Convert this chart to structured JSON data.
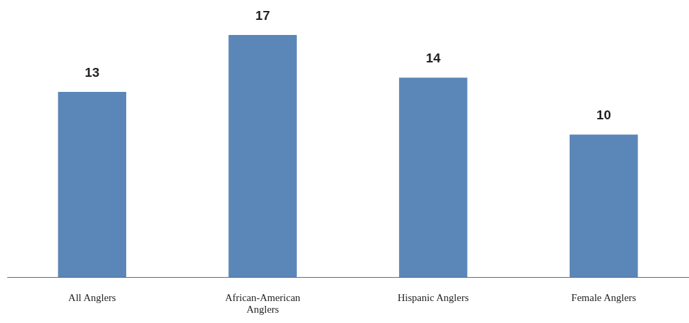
{
  "chart_data": {
    "type": "bar",
    "categories": [
      "All Anglers",
      "African-American Anglers",
      "Hispanic Anglers",
      "Female Anglers"
    ],
    "values": [
      13,
      17,
      14,
      10
    ],
    "color": "#5b86b8",
    "data_labels": true
  }
}
